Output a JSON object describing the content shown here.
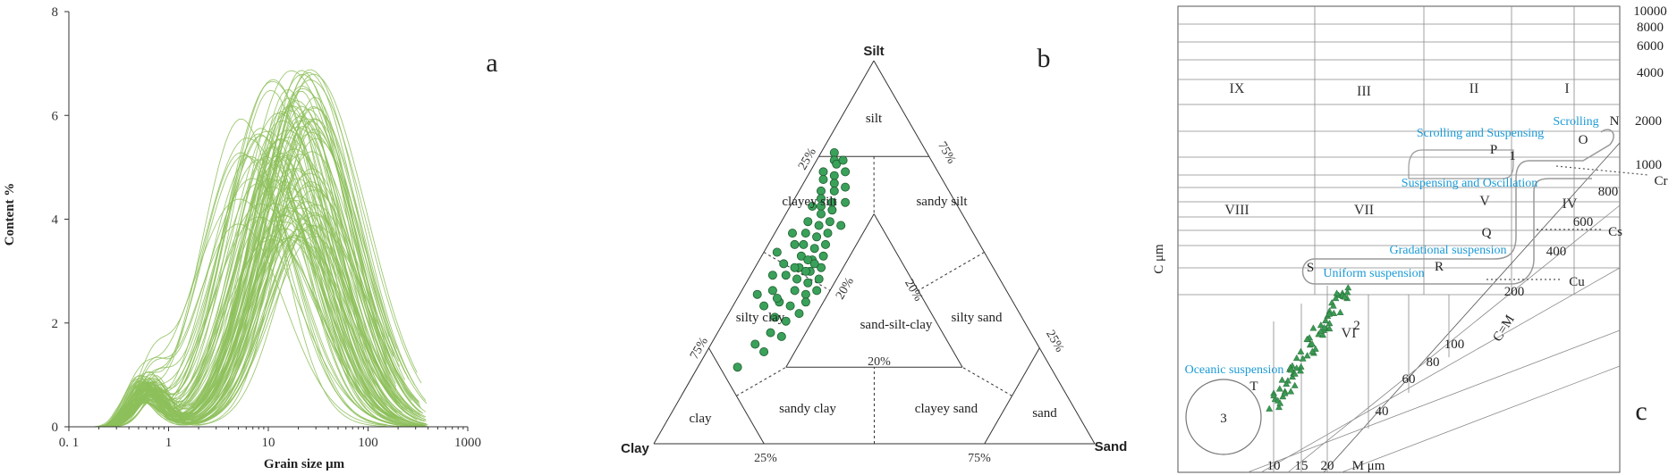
{
  "chart_data": [
    {
      "type": "line",
      "panel_label": "a",
      "xlabel": "Grain size μm",
      "ylabel": "Content %",
      "x_scale": "log",
      "xlim": [
        0.1,
        1000
      ],
      "ylim": [
        0,
        8
      ],
      "x_ticks": [
        0.1,
        1,
        10,
        100,
        1000
      ],
      "x_tick_labels": [
        "0. 1",
        "1",
        "10",
        "100",
        "1000"
      ],
      "y_ticks": [
        0,
        2,
        4,
        6,
        8
      ],
      "y_tick_labels": [
        "0",
        "2",
        "4",
        "6",
        "8"
      ],
      "grid": false,
      "line_color": "#8dc05b",
      "series_count": 110,
      "typical_curve": {
        "x": [
          0.18,
          0.3,
          0.6,
          1.0,
          1.5,
          3,
          6,
          10,
          20,
          40,
          70,
          100,
          200
        ],
        "y": [
          0,
          0.6,
          0.9,
          0.3,
          0.9,
          3.0,
          4.8,
          5.4,
          5.1,
          3.9,
          2.0,
          0.8,
          0
        ]
      }
    },
    {
      "type": "scatter",
      "panel_label": "b",
      "ternary": true,
      "vertices": {
        "top": "Silt",
        "left": "Clay",
        "right": "Sand"
      },
      "edge_labels": [
        "25%",
        "75%",
        "75%",
        "25%",
        "25%",
        "75%",
        "20%",
        "20%",
        "20%"
      ],
      "field_labels": [
        "silt",
        "clayey silt",
        "sandy silt",
        "silty clay",
        "sand-silt-clay",
        "silty sand",
        "clay",
        "sandy clay",
        "clayey sand",
        "sand"
      ],
      "point_color": "#3aa15a",
      "points_sand_silt_clay": [
        [
          3,
          76,
          21
        ],
        [
          4,
          74,
          22
        ],
        [
          3,
          71,
          26
        ],
        [
          5,
          73,
          22
        ],
        [
          4,
          69,
          27
        ],
        [
          6,
          70,
          24
        ],
        [
          5,
          66,
          29
        ],
        [
          7,
          68,
          25
        ],
        [
          6,
          64,
          30
        ],
        [
          8,
          66,
          26
        ],
        [
          7,
          62,
          31
        ],
        [
          9,
          63,
          28
        ],
        [
          8,
          60,
          32
        ],
        [
          10,
          61,
          29
        ],
        [
          6,
          58,
          36
        ],
        [
          9,
          57,
          34
        ],
        [
          11,
          58,
          31
        ],
        [
          7,
          55,
          38
        ],
        [
          10,
          54,
          36
        ],
        [
          12,
          55,
          33
        ],
        [
          8,
          52,
          40
        ],
        [
          11,
          51,
          38
        ],
        [
          13,
          52,
          35
        ],
        [
          9,
          49,
          42
        ],
        [
          12,
          48,
          40
        ],
        [
          14,
          49,
          37
        ],
        [
          10,
          46,
          44
        ],
        [
          13,
          45,
          42
        ],
        [
          15,
          46,
          39
        ],
        [
          11,
          43,
          46
        ],
        [
          14,
          42,
          44
        ],
        [
          16,
          43,
          41
        ],
        [
          12,
          40,
          48
        ],
        [
          15,
          39,
          46
        ],
        [
          10,
          37,
          53
        ],
        [
          13,
          36,
          51
        ],
        [
          16,
          37,
          47
        ],
        [
          11,
          33,
          56
        ],
        [
          14,
          32,
          54
        ],
        [
          12,
          29,
          59
        ],
        [
          15,
          28,
          57
        ],
        [
          10,
          26,
          64
        ],
        [
          13,
          24,
          63
        ],
        [
          9,
          20,
          71
        ],
        [
          12,
          45,
          43
        ],
        [
          8,
          44,
          48
        ],
        [
          6,
          47,
          47
        ],
        [
          5,
          44,
          51
        ],
        [
          7,
          40,
          53
        ],
        [
          4,
          39,
          57
        ],
        [
          9,
          38,
          53
        ],
        [
          17,
          40,
          43
        ],
        [
          16,
          34,
          50
        ],
        [
          14,
          57,
          29
        ],
        [
          12,
          63,
          25
        ],
        [
          10,
          67,
          23
        ],
        [
          8,
          71,
          21
        ],
        [
          6,
          74,
          20
        ],
        [
          5,
          62,
          33
        ],
        [
          4,
          55,
          41
        ],
        [
          3,
          50,
          47
        ],
        [
          6,
          52,
          42
        ],
        [
          11,
          48,
          41
        ],
        [
          13,
          47,
          40
        ],
        [
          9,
          46,
          45
        ],
        [
          7,
          36,
          57
        ]
      ]
    },
    {
      "type": "scatter",
      "panel_label": "c",
      "xlabel": "M μm",
      "ylabel": "C μm",
      "diagonal_label": "C=M",
      "y_tick_labels": [
        "10000",
        "8000",
        "6000",
        "4000",
        "2000",
        "1000"
      ],
      "diag_tick_labels": [
        "800",
        "600",
        "400",
        "200",
        "100",
        "80",
        "60",
        "40"
      ],
      "x_tick_labels": [
        "10",
        "15",
        "20"
      ],
      "region_numerals": [
        "IX",
        "III",
        "II",
        "I",
        "VIII",
        "VII",
        "V",
        "IV",
        "VI"
      ],
      "segment_letters": [
        "N",
        "O",
        "P",
        "Q",
        "R",
        "S",
        "T"
      ],
      "zone_numbers": [
        "1",
        "2",
        "3"
      ],
      "thresholds": [
        "Cr",
        "Cs",
        "Cu"
      ],
      "transport_labels": [
        "Scrolling",
        "Scrolling and Suspensing",
        "Suspensing and Oscillation",
        "Gradational suspension",
        "Uniform suspension",
        "Oceanic suspension"
      ],
      "label_color": "#1b9ad6",
      "point_color": "#3a9a52",
      "point_count": 66
    }
  ]
}
